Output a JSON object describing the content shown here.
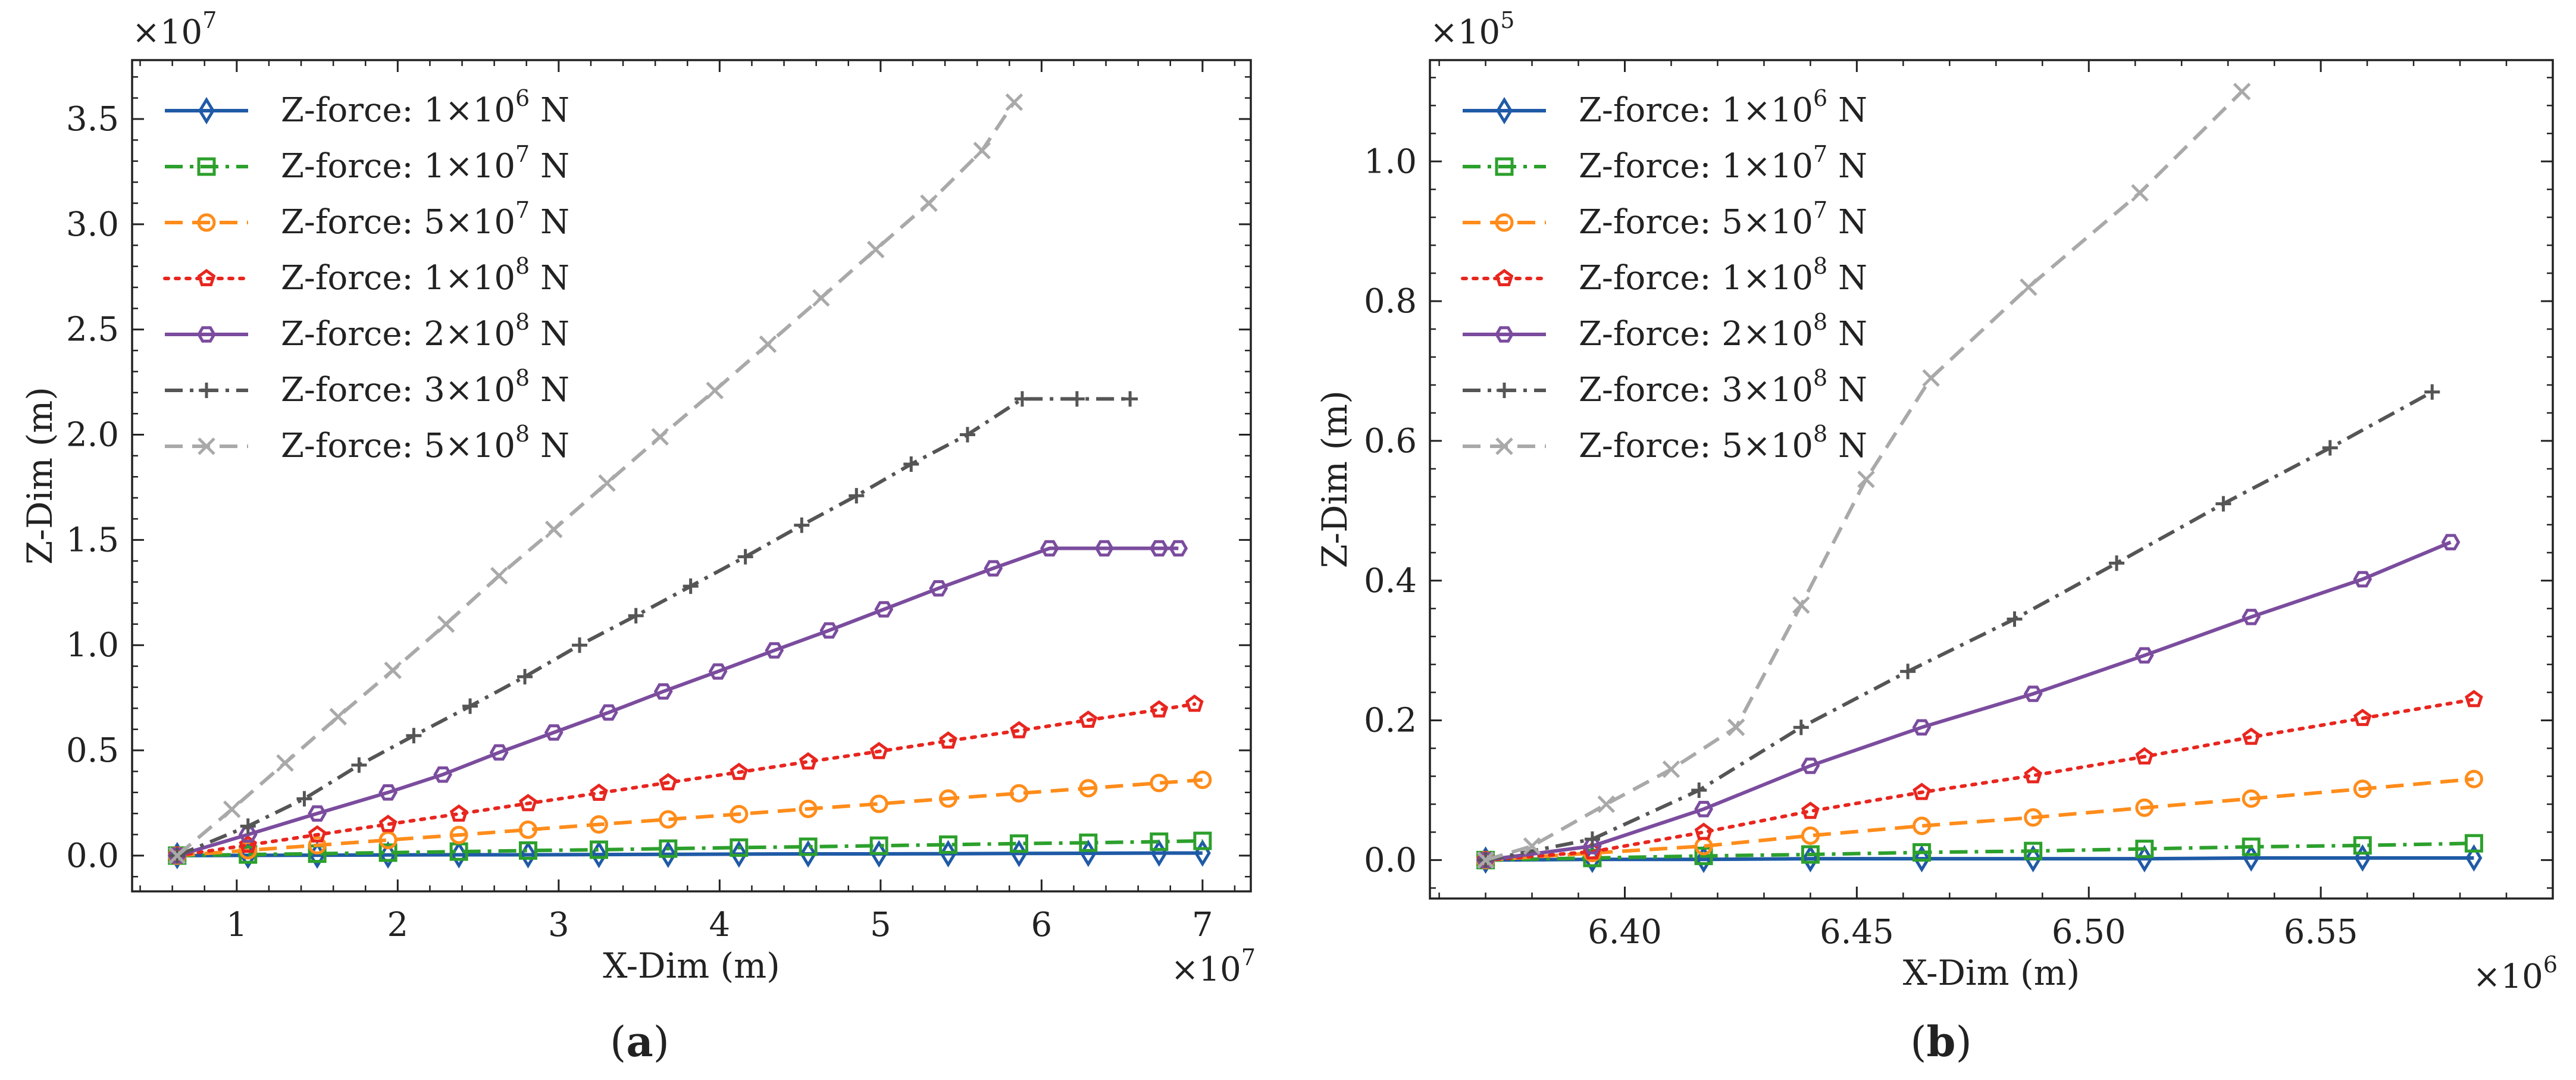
{
  "chart_data": [
    {
      "type": "line",
      "panel_label": "(a)",
      "panel_letter": "a",
      "xlabel": "X-Dim (m)",
      "ylabel": "Z-Dim (m)",
      "x_multiplier": "×10",
      "x_multiplier_exp": "7",
      "y_multiplier": "×10",
      "y_multiplier_exp": "7",
      "xlim": [
        0.35,
        7.3
      ],
      "ylim": [
        -0.17,
        3.78
      ],
      "xticks": [
        1,
        2,
        3,
        4,
        5,
        6,
        7
      ],
      "xtick_labels": [
        "1",
        "2",
        "3",
        "4",
        "5",
        "6",
        "7"
      ],
      "yticks": [
        0.0,
        0.5,
        1.0,
        1.5,
        2.0,
        2.5,
        3.0,
        3.5
      ],
      "ytick_labels": [
        "0.0",
        "0.5",
        "1.0",
        "1.5",
        "2.0",
        "2.5",
        "3.0",
        "3.5"
      ],
      "legend_position": "top-left",
      "series": [
        {
          "name": "Z-force: 1×10",
          "exp": "6",
          "unit": "N",
          "color": "#1f5aa6",
          "marker": "diamond",
          "dash": "solid",
          "x": [
            0.63,
            1.07,
            1.5,
            1.94,
            2.38,
            2.81,
            3.25,
            3.68,
            4.12,
            4.55,
            4.99,
            5.42,
            5.86,
            6.29,
            6.73,
            7.0
          ],
          "y": [
            0.0,
            0.001,
            0.002,
            0.003,
            0.004,
            0.004,
            0.005,
            0.006,
            0.007,
            0.008,
            0.008,
            0.009,
            0.01,
            0.011,
            0.012,
            0.012
          ]
        },
        {
          "name": "Z-force: 1×10",
          "exp": "7",
          "unit": "N",
          "color": "#2ca02c",
          "marker": "square",
          "dash": "dashdot",
          "x": [
            0.63,
            1.07,
            1.5,
            1.94,
            2.38,
            2.81,
            3.25,
            3.68,
            4.12,
            4.55,
            4.99,
            5.42,
            5.86,
            6.29,
            6.73,
            7.0
          ],
          "y": [
            0.0,
            0.005,
            0.009,
            0.014,
            0.019,
            0.024,
            0.028,
            0.033,
            0.038,
            0.042,
            0.047,
            0.052,
            0.057,
            0.061,
            0.066,
            0.07
          ]
        },
        {
          "name": "Z-force: 5×10",
          "exp": "7",
          "unit": "N",
          "color": "#ff8c1a",
          "marker": "circle",
          "dash": "dashed",
          "x": [
            0.63,
            1.07,
            1.5,
            1.94,
            2.38,
            2.81,
            3.25,
            3.68,
            4.12,
            4.55,
            4.99,
            5.42,
            5.86,
            6.29,
            6.73,
            7.0
          ],
          "y": [
            0.0,
            0.025,
            0.049,
            0.074,
            0.098,
            0.123,
            0.148,
            0.172,
            0.197,
            0.222,
            0.246,
            0.271,
            0.296,
            0.32,
            0.345,
            0.36
          ]
        },
        {
          "name": "Z-force: 1×10",
          "exp": "8",
          "unit": "N",
          "color": "#e8261f",
          "marker": "pentagon",
          "dash": "dotted",
          "x": [
            0.63,
            1.07,
            1.5,
            1.94,
            2.38,
            2.81,
            3.25,
            3.68,
            4.12,
            4.55,
            4.99,
            5.42,
            5.86,
            6.29,
            6.73,
            6.95
          ],
          "y": [
            0.0,
            0.05,
            0.099,
            0.149,
            0.198,
            0.248,
            0.297,
            0.347,
            0.396,
            0.446,
            0.495,
            0.545,
            0.594,
            0.644,
            0.693,
            0.72
          ]
        },
        {
          "name": "Z-force: 2×10",
          "exp": "8",
          "unit": "N",
          "color": "#7b4c9e",
          "marker": "hexagon",
          "dash": "solid",
          "x": [
            0.63,
            1.07,
            1.5,
            1.94,
            2.28,
            2.63,
            2.97,
            3.31,
            3.65,
            3.99,
            4.34,
            4.68,
            5.02,
            5.36,
            5.7,
            6.05,
            6.39,
            6.73,
            6.85
          ],
          "y": [
            0.0,
            0.1,
            0.2,
            0.3,
            0.385,
            0.49,
            0.585,
            0.68,
            0.78,
            0.875,
            0.975,
            1.07,
            1.17,
            1.27,
            1.365,
            1.46,
            1.46,
            1.46,
            1.46
          ]
        },
        {
          "name": "Z-force: 3×10",
          "exp": "8",
          "unit": "N",
          "color": "#555555",
          "marker": "plus",
          "dash": "dashdot",
          "x": [
            0.63,
            1.07,
            1.42,
            1.76,
            2.1,
            2.45,
            2.79,
            3.13,
            3.48,
            3.82,
            4.16,
            4.51,
            4.85,
            5.19,
            5.54,
            5.88,
            6.22,
            6.55
          ],
          "y": [
            0.0,
            0.14,
            0.27,
            0.43,
            0.57,
            0.71,
            0.85,
            1.0,
            1.14,
            1.28,
            1.42,
            1.57,
            1.71,
            1.86,
            2.0,
            2.17,
            2.17,
            2.17
          ]
        },
        {
          "name": "Z-force: 5×10",
          "exp": "8",
          "unit": "N",
          "color": "#a9a9a9",
          "marker": "x",
          "dash": "dashed",
          "x": [
            0.63,
            0.97,
            1.3,
            1.63,
            1.97,
            2.3,
            2.63,
            2.97,
            3.3,
            3.63,
            3.97,
            4.3,
            4.63,
            4.97,
            5.3,
            5.63,
            5.83
          ],
          "y": [
            0.0,
            0.22,
            0.44,
            0.66,
            0.88,
            1.1,
            1.33,
            1.55,
            1.77,
            1.99,
            2.21,
            2.43,
            2.65,
            2.88,
            3.1,
            3.35,
            3.58
          ]
        }
      ]
    },
    {
      "type": "line",
      "panel_label": "(b)",
      "panel_letter": "b",
      "xlabel": "X-Dim (m)",
      "ylabel": "Z-Dim (m)",
      "x_multiplier": "×10",
      "x_multiplier_exp": "6",
      "y_multiplier": "×10",
      "y_multiplier_exp": "5",
      "xlim": [
        6.358,
        6.6
      ],
      "ylim": [
        -0.055,
        1.145
      ],
      "xticks": [
        6.4,
        6.45,
        6.5,
        6.55
      ],
      "xtick_labels": [
        "6.40",
        "6.45",
        "6.50",
        "6.55"
      ],
      "yticks": [
        0.0,
        0.2,
        0.4,
        0.6,
        0.8,
        1.0
      ],
      "ytick_labels": [
        "0.0",
        "0.2",
        "0.4",
        "0.6",
        "0.8",
        "1.0"
      ],
      "legend_position": "top-left",
      "series": [
        {
          "name": "Z-force: 1×10",
          "exp": "6",
          "unit": "N",
          "color": "#1f5aa6",
          "marker": "diamond",
          "dash": "solid",
          "x": [
            6.37,
            6.393,
            6.417,
            6.44,
            6.464,
            6.488,
            6.512,
            6.535,
            6.559,
            6.583
          ],
          "y": [
            0.0,
            0.001,
            0.001,
            0.002,
            0.002,
            0.002,
            0.002,
            0.003,
            0.003,
            0.003
          ]
        },
        {
          "name": "Z-force: 1×10",
          "exp": "7",
          "unit": "N",
          "color": "#2ca02c",
          "marker": "square",
          "dash": "dashdot",
          "x": [
            6.37,
            6.393,
            6.417,
            6.44,
            6.464,
            6.488,
            6.512,
            6.535,
            6.559,
            6.583
          ],
          "y": [
            0.0,
            0.003,
            0.006,
            0.008,
            0.011,
            0.013,
            0.016,
            0.019,
            0.021,
            0.024
          ]
        },
        {
          "name": "Z-force: 5×10",
          "exp": "7",
          "unit": "N",
          "color": "#ff8c1a",
          "marker": "circle",
          "dash": "dashed",
          "x": [
            6.37,
            6.393,
            6.417,
            6.44,
            6.464,
            6.488,
            6.512,
            6.535,
            6.559,
            6.583
          ],
          "y": [
            0.0,
            0.01,
            0.02,
            0.035,
            0.049,
            0.061,
            0.075,
            0.088,
            0.102,
            0.116
          ]
        },
        {
          "name": "Z-force: 1×10",
          "exp": "8",
          "unit": "N",
          "color": "#e8261f",
          "marker": "pentagon",
          "dash": "dotted",
          "x": [
            6.37,
            6.393,
            6.417,
            6.44,
            6.464,
            6.488,
            6.512,
            6.535,
            6.559,
            6.583
          ],
          "y": [
            0.0,
            0.012,
            0.04,
            0.07,
            0.097,
            0.121,
            0.148,
            0.176,
            0.203,
            0.23
          ]
        },
        {
          "name": "Z-force: 2×10",
          "exp": "8",
          "unit": "N",
          "color": "#7b4c9e",
          "marker": "hexagon",
          "dash": "solid",
          "x": [
            6.37,
            6.393,
            6.417,
            6.44,
            6.464,
            6.488,
            6.512,
            6.535,
            6.559,
            6.578
          ],
          "y": [
            0.0,
            0.02,
            0.073,
            0.135,
            0.19,
            0.238,
            0.293,
            0.348,
            0.402,
            0.455
          ]
        },
        {
          "name": "Z-force: 3×10",
          "exp": "8",
          "unit": "N",
          "color": "#555555",
          "marker": "plus",
          "dash": "dashdot",
          "x": [
            6.37,
            6.393,
            6.416,
            6.438,
            6.461,
            6.484,
            6.506,
            6.529,
            6.552,
            6.574
          ],
          "y": [
            0.0,
            0.03,
            0.1,
            0.19,
            0.27,
            0.345,
            0.425,
            0.51,
            0.59,
            0.67
          ]
        },
        {
          "name": "Z-force: 5×10",
          "exp": "8",
          "unit": "N",
          "color": "#a9a9a9",
          "marker": "x",
          "dash": "dashed",
          "x": [
            6.37,
            6.38,
            6.396,
            6.41,
            6.424,
            6.438,
            6.452,
            6.466,
            6.487,
            6.511,
            6.533
          ],
          "y": [
            0.0,
            0.02,
            0.08,
            0.13,
            0.19,
            0.365,
            0.545,
            0.69,
            0.82,
            0.955,
            1.1
          ]
        }
      ]
    }
  ]
}
